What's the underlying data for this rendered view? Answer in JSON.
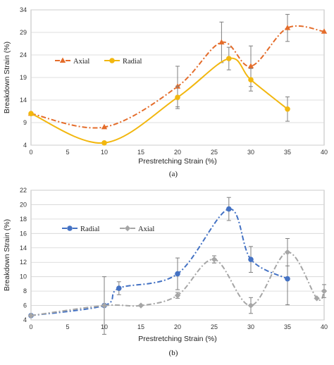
{
  "chart_data": [
    {
      "panel_label": "(a)",
      "type": "line",
      "xlabel": "Prestretching Strain (%)",
      "ylabel": "Breakdown Strain (%)",
      "xlim": [
        0,
        40
      ],
      "ylim": [
        4,
        34
      ],
      "xticks": [
        0,
        5,
        10,
        15,
        20,
        25,
        30,
        35,
        40
      ],
      "yticks": [
        4,
        9,
        14,
        19,
        24,
        29,
        34
      ],
      "grid": "horizontal",
      "legend_position": "top-left",
      "series": [
        {
          "name": "Axial",
          "color": "#E46C2A",
          "line_style": "dash-dot",
          "marker": "triangle",
          "smooth_through": [
            [
              0,
              11.0
            ],
            [
              10,
              8.0
            ],
            [
              20,
              17.0
            ],
            [
              26,
              26.8
            ],
            [
              30,
              21.5
            ],
            [
              35,
              30.0
            ],
            [
              40,
              29.2
            ]
          ],
          "points": [
            {
              "x": 0,
              "y": 11.0,
              "err": 0
            },
            {
              "x": 10,
              "y": 8.0,
              "err": 0
            },
            {
              "x": 20,
              "y": 17.0,
              "err": 4.5
            },
            {
              "x": 26,
              "y": 26.8,
              "err": 4.5
            },
            {
              "x": 30,
              "y": 21.5,
              "err": 4.5
            },
            {
              "x": 35,
              "y": 30.0,
              "err": 3.0
            },
            {
              "x": 40,
              "y": 29.2,
              "err": 0
            }
          ]
        },
        {
          "name": "Radial",
          "color": "#F2B70F",
          "line_style": "solid",
          "marker": "circle",
          "smooth_through": [
            [
              0,
              11.0
            ],
            [
              10,
              4.5
            ],
            [
              20,
              14.6
            ],
            [
              27,
              23.2
            ],
            [
              30,
              18.5
            ],
            [
              35,
              12.0
            ]
          ],
          "points": [
            {
              "x": 0,
              "y": 11.0,
              "err": 0
            },
            {
              "x": 10,
              "y": 4.5,
              "err": 0
            },
            {
              "x": 20,
              "y": 14.6,
              "err": 2.5
            },
            {
              "x": 27,
              "y": 23.2,
              "err": 2.5
            },
            {
              "x": 30,
              "y": 18.5,
              "err": 2.5
            },
            {
              "x": 35,
              "y": 12.0,
              "err": 2.7
            }
          ]
        }
      ]
    },
    {
      "panel_label": "(b)",
      "type": "line",
      "xlabel": "Prestretching Strain (%)",
      "ylabel": "Breakdown Strain (%)",
      "xlim": [
        0,
        40
      ],
      "ylim": [
        4,
        22
      ],
      "xticks": [
        0,
        5,
        10,
        15,
        20,
        25,
        30,
        35,
        40
      ],
      "yticks": [
        4,
        6,
        8,
        10,
        12,
        14,
        16,
        18,
        20,
        22
      ],
      "grid": "horizontal",
      "legend_position": "top-left",
      "series": [
        {
          "name": "Radial",
          "color": "#4472C4",
          "line_style": "dash-dot",
          "marker": "circle",
          "smooth_through": [
            [
              0,
              4.6
            ],
            [
              10,
              6.0
            ],
            [
              12,
              8.4
            ],
            [
              20,
              10.4
            ],
            [
              27,
              19.4
            ],
            [
              30,
              12.4
            ],
            [
              35,
              9.7
            ]
          ],
          "points": [
            {
              "x": 0,
              "y": 4.6,
              "err": 0
            },
            {
              "x": 10,
              "y": 6.0,
              "err": 0
            },
            {
              "x": 12,
              "y": 8.4,
              "err": 0.9
            },
            {
              "x": 20,
              "y": 10.4,
              "err": 2.2
            },
            {
              "x": 27,
              "y": 19.4,
              "err": 1.6
            },
            {
              "x": 30,
              "y": 12.4,
              "err": 1.8
            },
            {
              "x": 35,
              "y": 9.7,
              "err": 3.6
            }
          ]
        },
        {
          "name": "Axial",
          "color": "#A6A6A6",
          "line_style": "dash-dot",
          "marker": "diamond",
          "smooth_through": [
            [
              0,
              4.6
            ],
            [
              10,
              6.0
            ],
            [
              15,
              6.0
            ],
            [
              20,
              7.4
            ],
            [
              25,
              12.4
            ],
            [
              30,
              6.0
            ],
            [
              35,
              13.4
            ],
            [
              39,
              7.0
            ],
            [
              40,
              8.0
            ]
          ],
          "points": [
            {
              "x": 0,
              "y": 4.6,
              "err": 0
            },
            {
              "x": 10,
              "y": 6.0,
              "err": 4.0
            },
            {
              "x": 15,
              "y": 6.0,
              "err": 0
            },
            {
              "x": 20,
              "y": 7.4,
              "err": 0.4
            },
            {
              "x": 25,
              "y": 12.4,
              "err": 0.5
            },
            {
              "x": 30,
              "y": 6.0,
              "err": 1.1
            },
            {
              "x": 35,
              "y": 13.4,
              "err": 1.9
            },
            {
              "x": 39,
              "y": 7.0,
              "err": 0
            },
            {
              "x": 40,
              "y": 8.0,
              "err": 0.9
            }
          ]
        }
      ]
    }
  ]
}
